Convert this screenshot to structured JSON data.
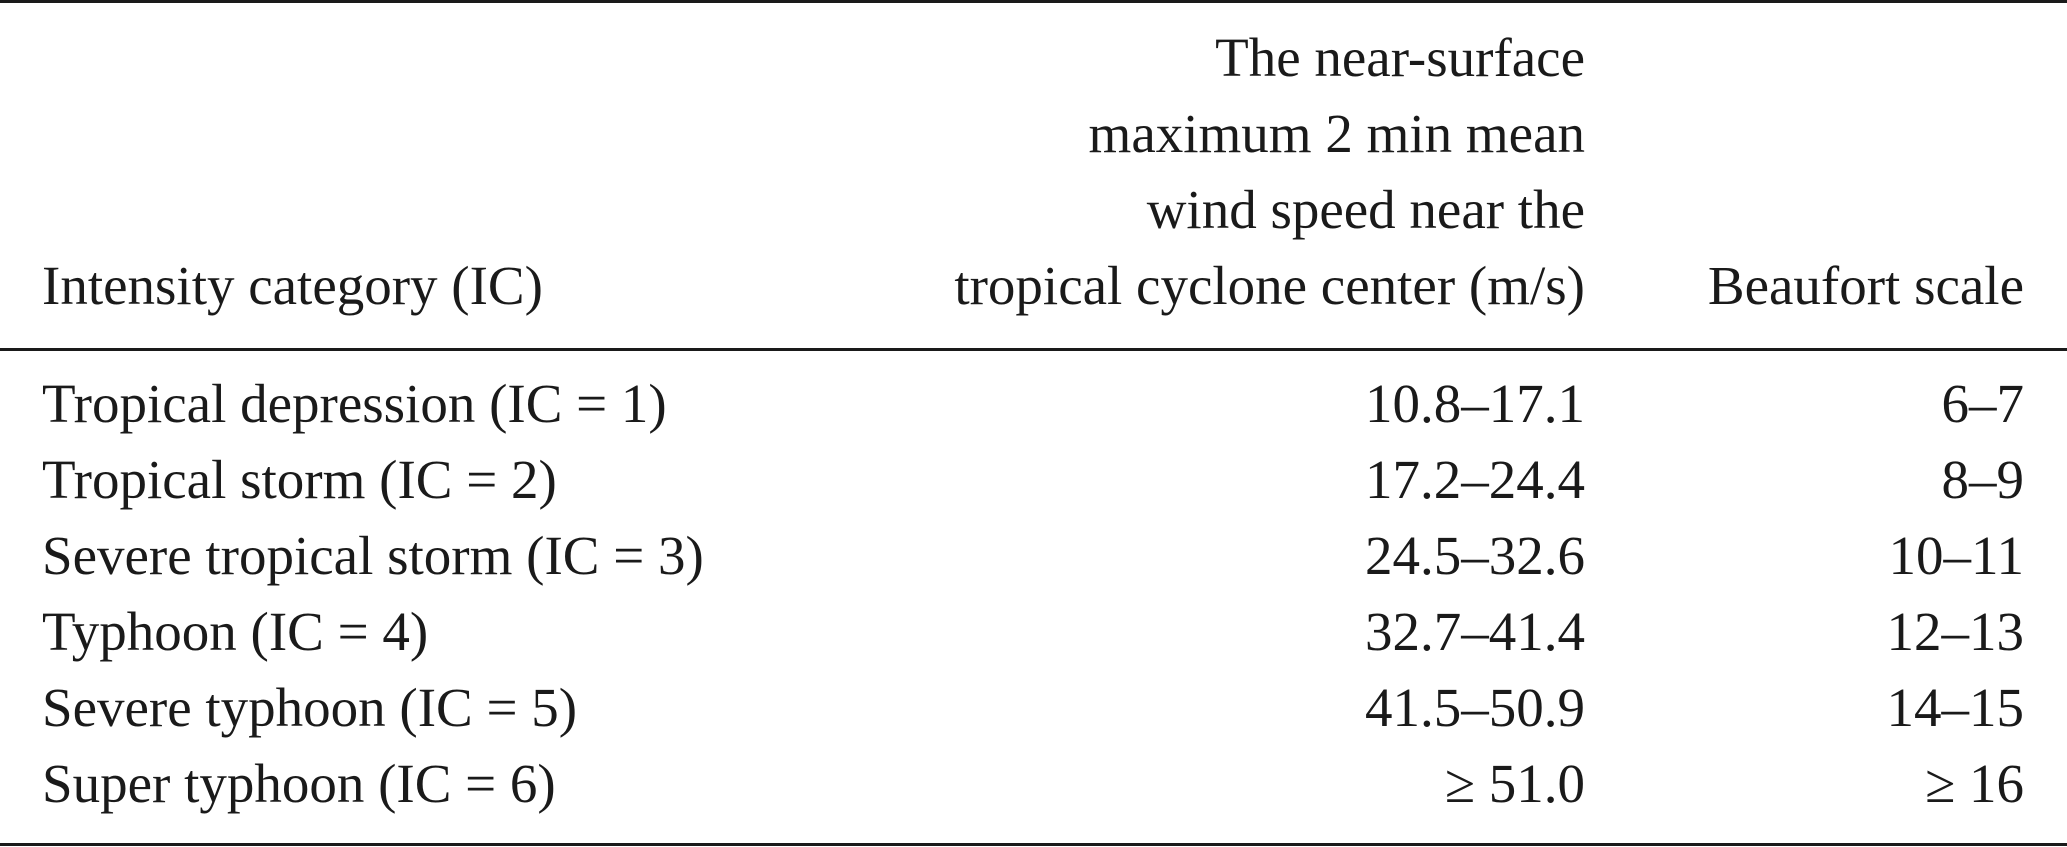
{
  "table": {
    "headers": {
      "col1": "Intensity category (IC)",
      "col2_lines": [
        "The near-surface",
        "maximum 2 min mean",
        "wind speed near the",
        "tropical cyclone center (m/s)"
      ],
      "col3": "Beaufort scale"
    },
    "rows": [
      {
        "category": "Tropical depression (IC = 1)",
        "wind_speed": "10.8–17.1",
        "beaufort": "6–7"
      },
      {
        "category": "Tropical storm (IC = 2)",
        "wind_speed": "17.2–24.4",
        "beaufort": "8–9"
      },
      {
        "category": "Severe tropical storm (IC = 3)",
        "wind_speed": "24.5–32.6",
        "beaufort": "10–11"
      },
      {
        "category": "Typhoon (IC = 4)",
        "wind_speed": "32.7–41.4",
        "beaufort": "12–13"
      },
      {
        "category": "Severe typhoon (IC = 5)",
        "wind_speed": "41.5–50.9",
        "beaufort": "14–15"
      },
      {
        "category": "Super typhoon (IC = 6)",
        "wind_speed": "≥ 51.0",
        "beaufort": "≥ 16"
      }
    ]
  }
}
